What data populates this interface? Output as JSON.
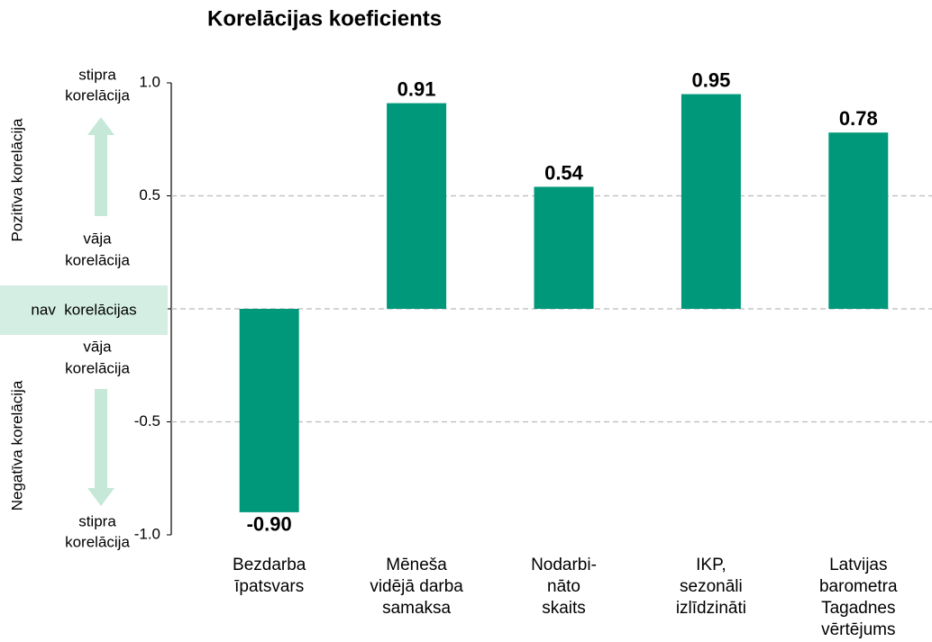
{
  "chart_data": {
    "type": "bar",
    "title": "Korelācijas koeficients",
    "categories": [
      [
        "Bezdarba",
        "īpatsvars"
      ],
      [
        "Mēneša",
        "vidējā darba",
        "samaksa"
      ],
      [
        "Nodarbi-",
        "nāto",
        "skaits"
      ],
      [
        "IKP,",
        "sezonāli",
        "izlīdzināti"
      ],
      [
        "Latvijas",
        "barometra",
        "Tagadnes",
        "vērtējums"
      ]
    ],
    "values": [
      -0.9,
      0.91,
      0.54,
      0.95,
      0.78
    ],
    "value_labels": [
      "-0.90",
      "0.91",
      "0.54",
      "0.95",
      "0.78"
    ],
    "color": "#00987a",
    "ylim": [
      -1.0,
      1.0
    ],
    "yticks": [
      {
        "value": -1.0,
        "label": "-1.0"
      },
      -0.5,
      {
        "value": 0.0,
        "label": "0.0"
      },
      0.5,
      {
        "value": 1.0,
        "label": "1.0"
      }
    ],
    "grid": true,
    "annotations": {
      "positive_axis": "Pozitīva korelācija",
      "negative_axis": "Negatīva korelācija",
      "top_strong": [
        "stipra",
        "korelācija"
      ],
      "top_weak": [
        "vāja",
        "korelācija"
      ],
      "none": "nav  korelācijas",
      "bottom_weak": [
        "vāja",
        "korelācija"
      ],
      "bottom_strong": [
        "stipra",
        "korelācija"
      ]
    }
  }
}
